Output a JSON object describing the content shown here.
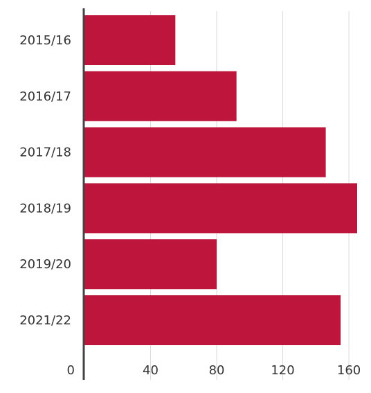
{
  "chart_data": {
    "type": "bar",
    "orientation": "horizontal",
    "categories": [
      "2015/16",
      "2016/17",
      "2017/18",
      "2018/19",
      "2019/20",
      "2021/22"
    ],
    "values": [
      55,
      92,
      146,
      165,
      80,
      155
    ],
    "x_ticks": [
      "0",
      "40",
      "80",
      "120",
      "160"
    ],
    "xlim": [
      0,
      165
    ],
    "grid": true,
    "title": "",
    "xlabel": "",
    "ylabel": "",
    "colors": {
      "bar": "#BE153D",
      "grid": "#D9D9D9",
      "axis": "#444444",
      "text": "#333333"
    }
  }
}
